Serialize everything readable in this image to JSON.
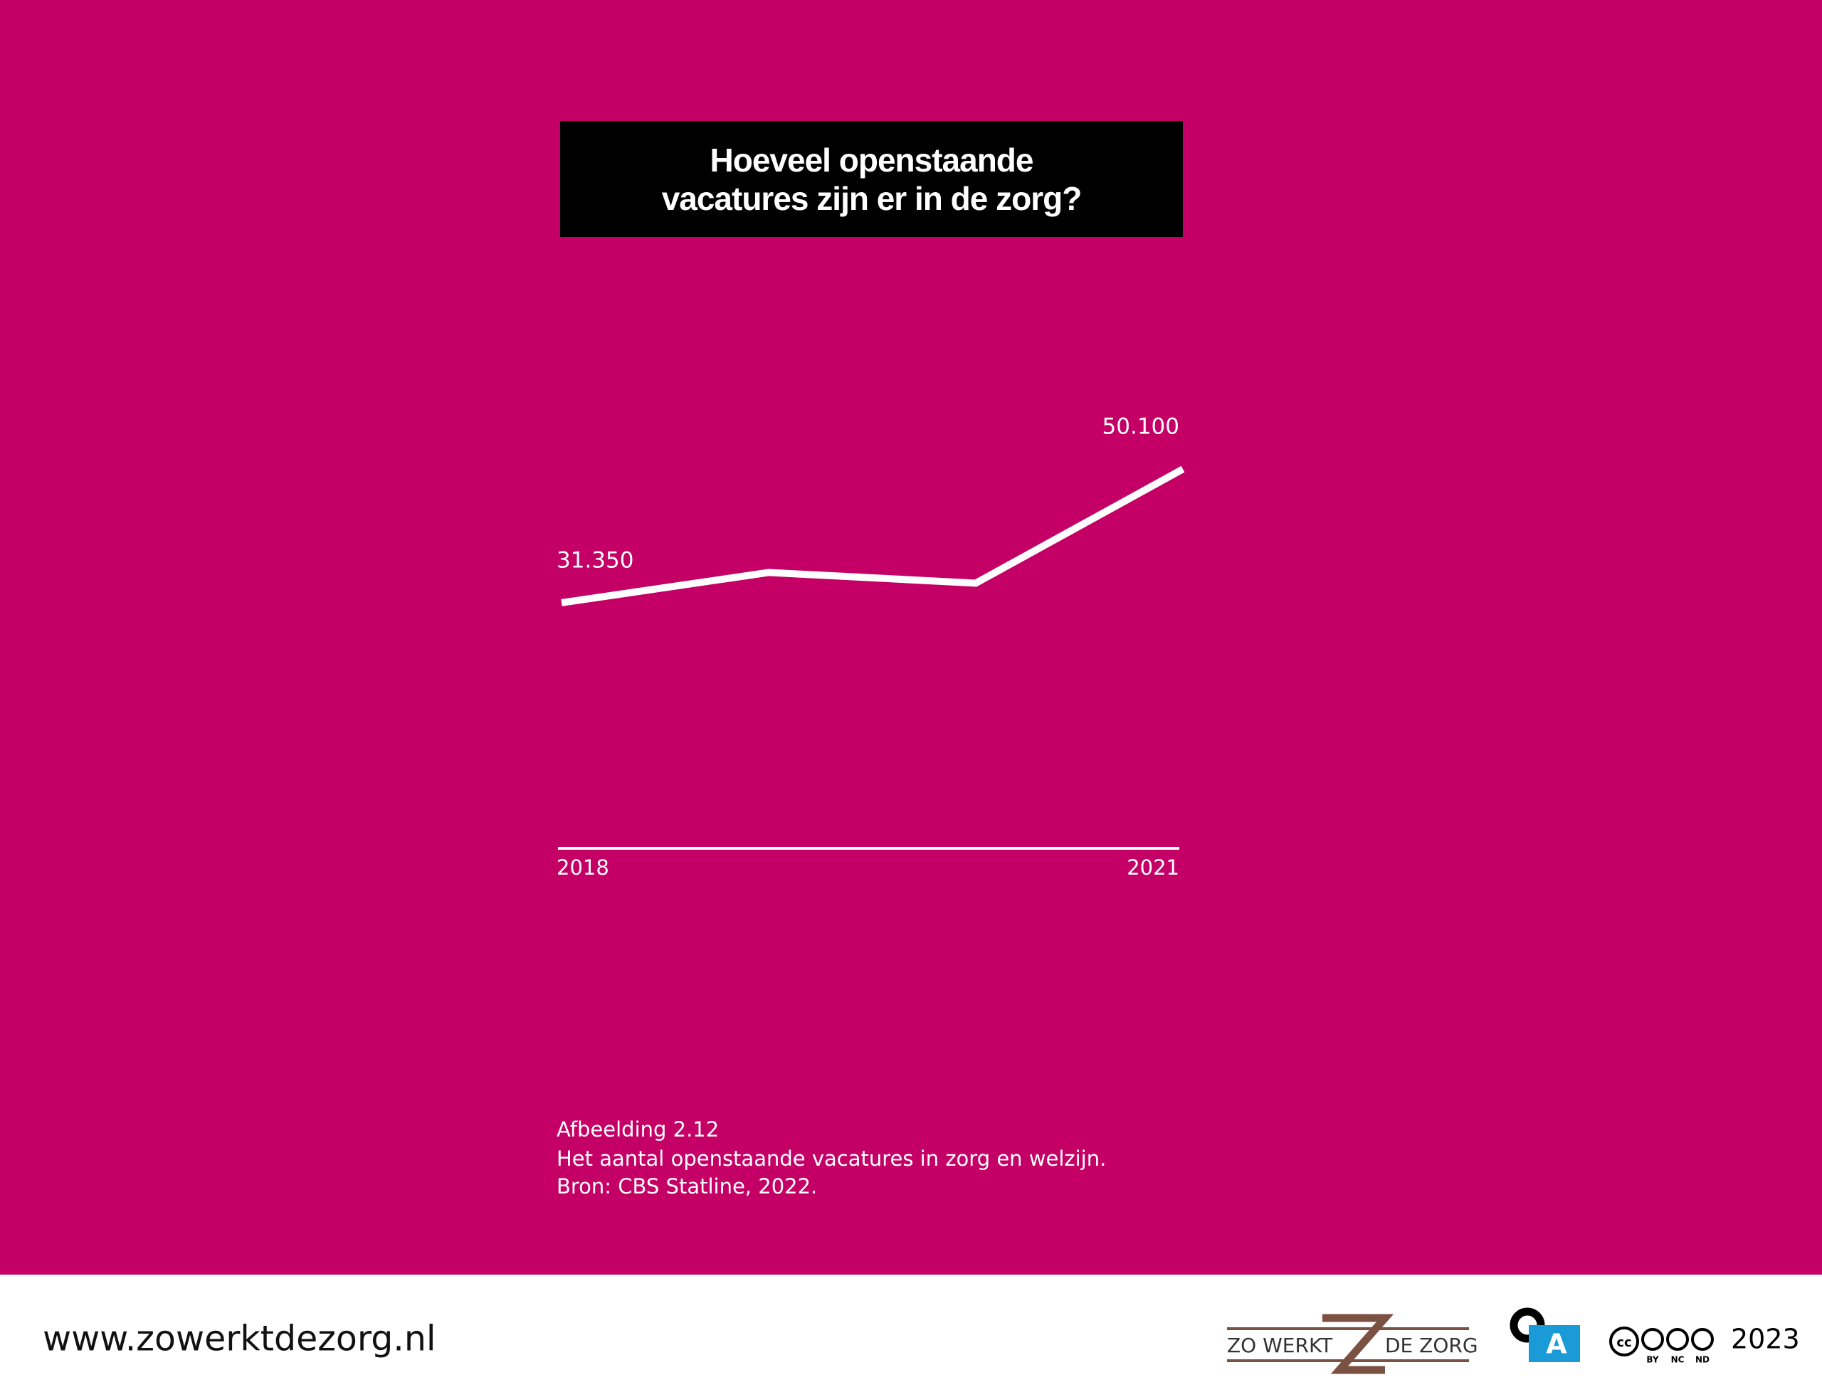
{
  "chart_data": {
    "type": "line",
    "title": [
      "Hoeveel openstaande",
      "vacatures zijn er in de zorg?"
    ],
    "categories": [
      "2018",
      null,
      null,
      "2021"
    ],
    "values": [
      31350,
      35600,
      34100,
      50100
    ],
    "value_labels": [
      "31.350",
      null,
      null,
      "50.100"
    ],
    "color": "#ffffff",
    "ylim": [
      0,
      60000
    ],
    "caption": [
      "Afbeelding 2.12",
      "Het aantal openstaande vacatures in zorg en welzijn.",
      "Bron: CBS Statline, 2022."
    ]
  },
  "footer": {
    "url": "www.zowerktdezorg.nl",
    "logo": [
      "ZO WERKT",
      "DE ZORG"
    ],
    "badge": "A",
    "license": {
      "icon": "cc",
      "terms": [
        "BY",
        "NC",
        "ND"
      ]
    },
    "year": "2023"
  }
}
